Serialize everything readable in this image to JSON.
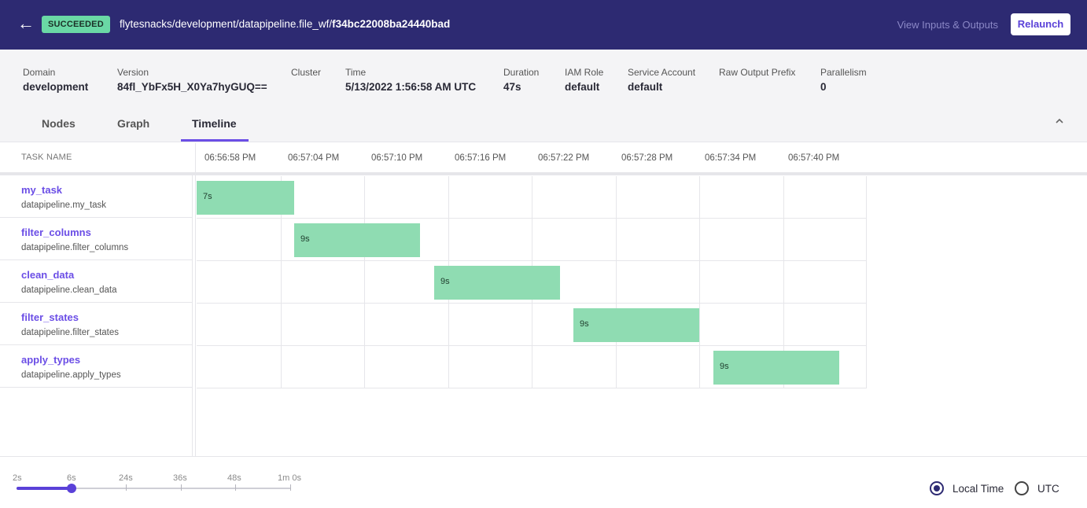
{
  "header": {
    "back_icon": "arrow-left-icon",
    "status": "SUCCEEDED",
    "path_prefix": "flytesnacks/development/datapipeline.file_wf/",
    "execution_id": "f34bc22008ba24440bad",
    "view_io_label": "View Inputs & Outputs",
    "relaunch_label": "Relaunch",
    "colors": {
      "bar_bg": "#2d2a72",
      "badge_bg": "#6ad8a5",
      "accent": "#6b4ee6"
    }
  },
  "meta": {
    "domain": {
      "label": "Domain",
      "value": "development"
    },
    "version": {
      "label": "Version",
      "value": "84fl_YbFx5H_X0Ya7hyGUQ=="
    },
    "cluster": {
      "label": "Cluster",
      "value": ""
    },
    "time": {
      "label": "Time",
      "value": "5/13/2022 1:56:58 AM UTC"
    },
    "duration": {
      "label": "Duration",
      "value": "47s"
    },
    "iam_role": {
      "label": "IAM Role",
      "value": "default"
    },
    "service_account": {
      "label": "Service Account",
      "value": "default"
    },
    "raw_output_prefix": {
      "label": "Raw Output Prefix",
      "value": ""
    },
    "parallelism": {
      "label": "Parallelism",
      "value": "0"
    }
  },
  "tabs": [
    {
      "label": "Nodes",
      "active": false
    },
    {
      "label": "Graph",
      "active": false
    },
    {
      "label": "Timeline",
      "active": true
    }
  ],
  "timeline": {
    "task_header": "TASK NAME",
    "ticks": [
      "06:56:58 PM",
      "06:57:04 PM",
      "06:57:10 PM",
      "06:57:16 PM",
      "06:57:22 PM",
      "06:57:28 PM",
      "06:57:34 PM",
      "06:57:40 PM"
    ],
    "tasks": [
      {
        "name": "my_task",
        "sub": "datapipeline.my_task",
        "start_s": 0,
        "duration_s": 7,
        "duration_label": "7s"
      },
      {
        "name": "filter_columns",
        "sub": "datapipeline.filter_columns",
        "start_s": 7,
        "duration_s": 9,
        "duration_label": "9s"
      },
      {
        "name": "clean_data",
        "sub": "datapipeline.clean_data",
        "start_s": 17,
        "duration_s": 9,
        "duration_label": "9s"
      },
      {
        "name": "filter_states",
        "sub": "datapipeline.filter_states",
        "start_s": 27,
        "duration_s": 9,
        "duration_label": "9s"
      },
      {
        "name": "apply_types",
        "sub": "datapipeline.apply_types",
        "start_s": 37,
        "duration_s": 9,
        "duration_label": "9s"
      }
    ],
    "bar_color": "#8fdcb2"
  },
  "footer": {
    "zoom_labels": [
      "2s",
      "6s",
      "24s",
      "36s",
      "48s",
      "1m 0s"
    ],
    "zoom_selected": "6s",
    "timezone": {
      "local_label": "Local Time",
      "utc_label": "UTC",
      "selected": "Local Time"
    }
  }
}
